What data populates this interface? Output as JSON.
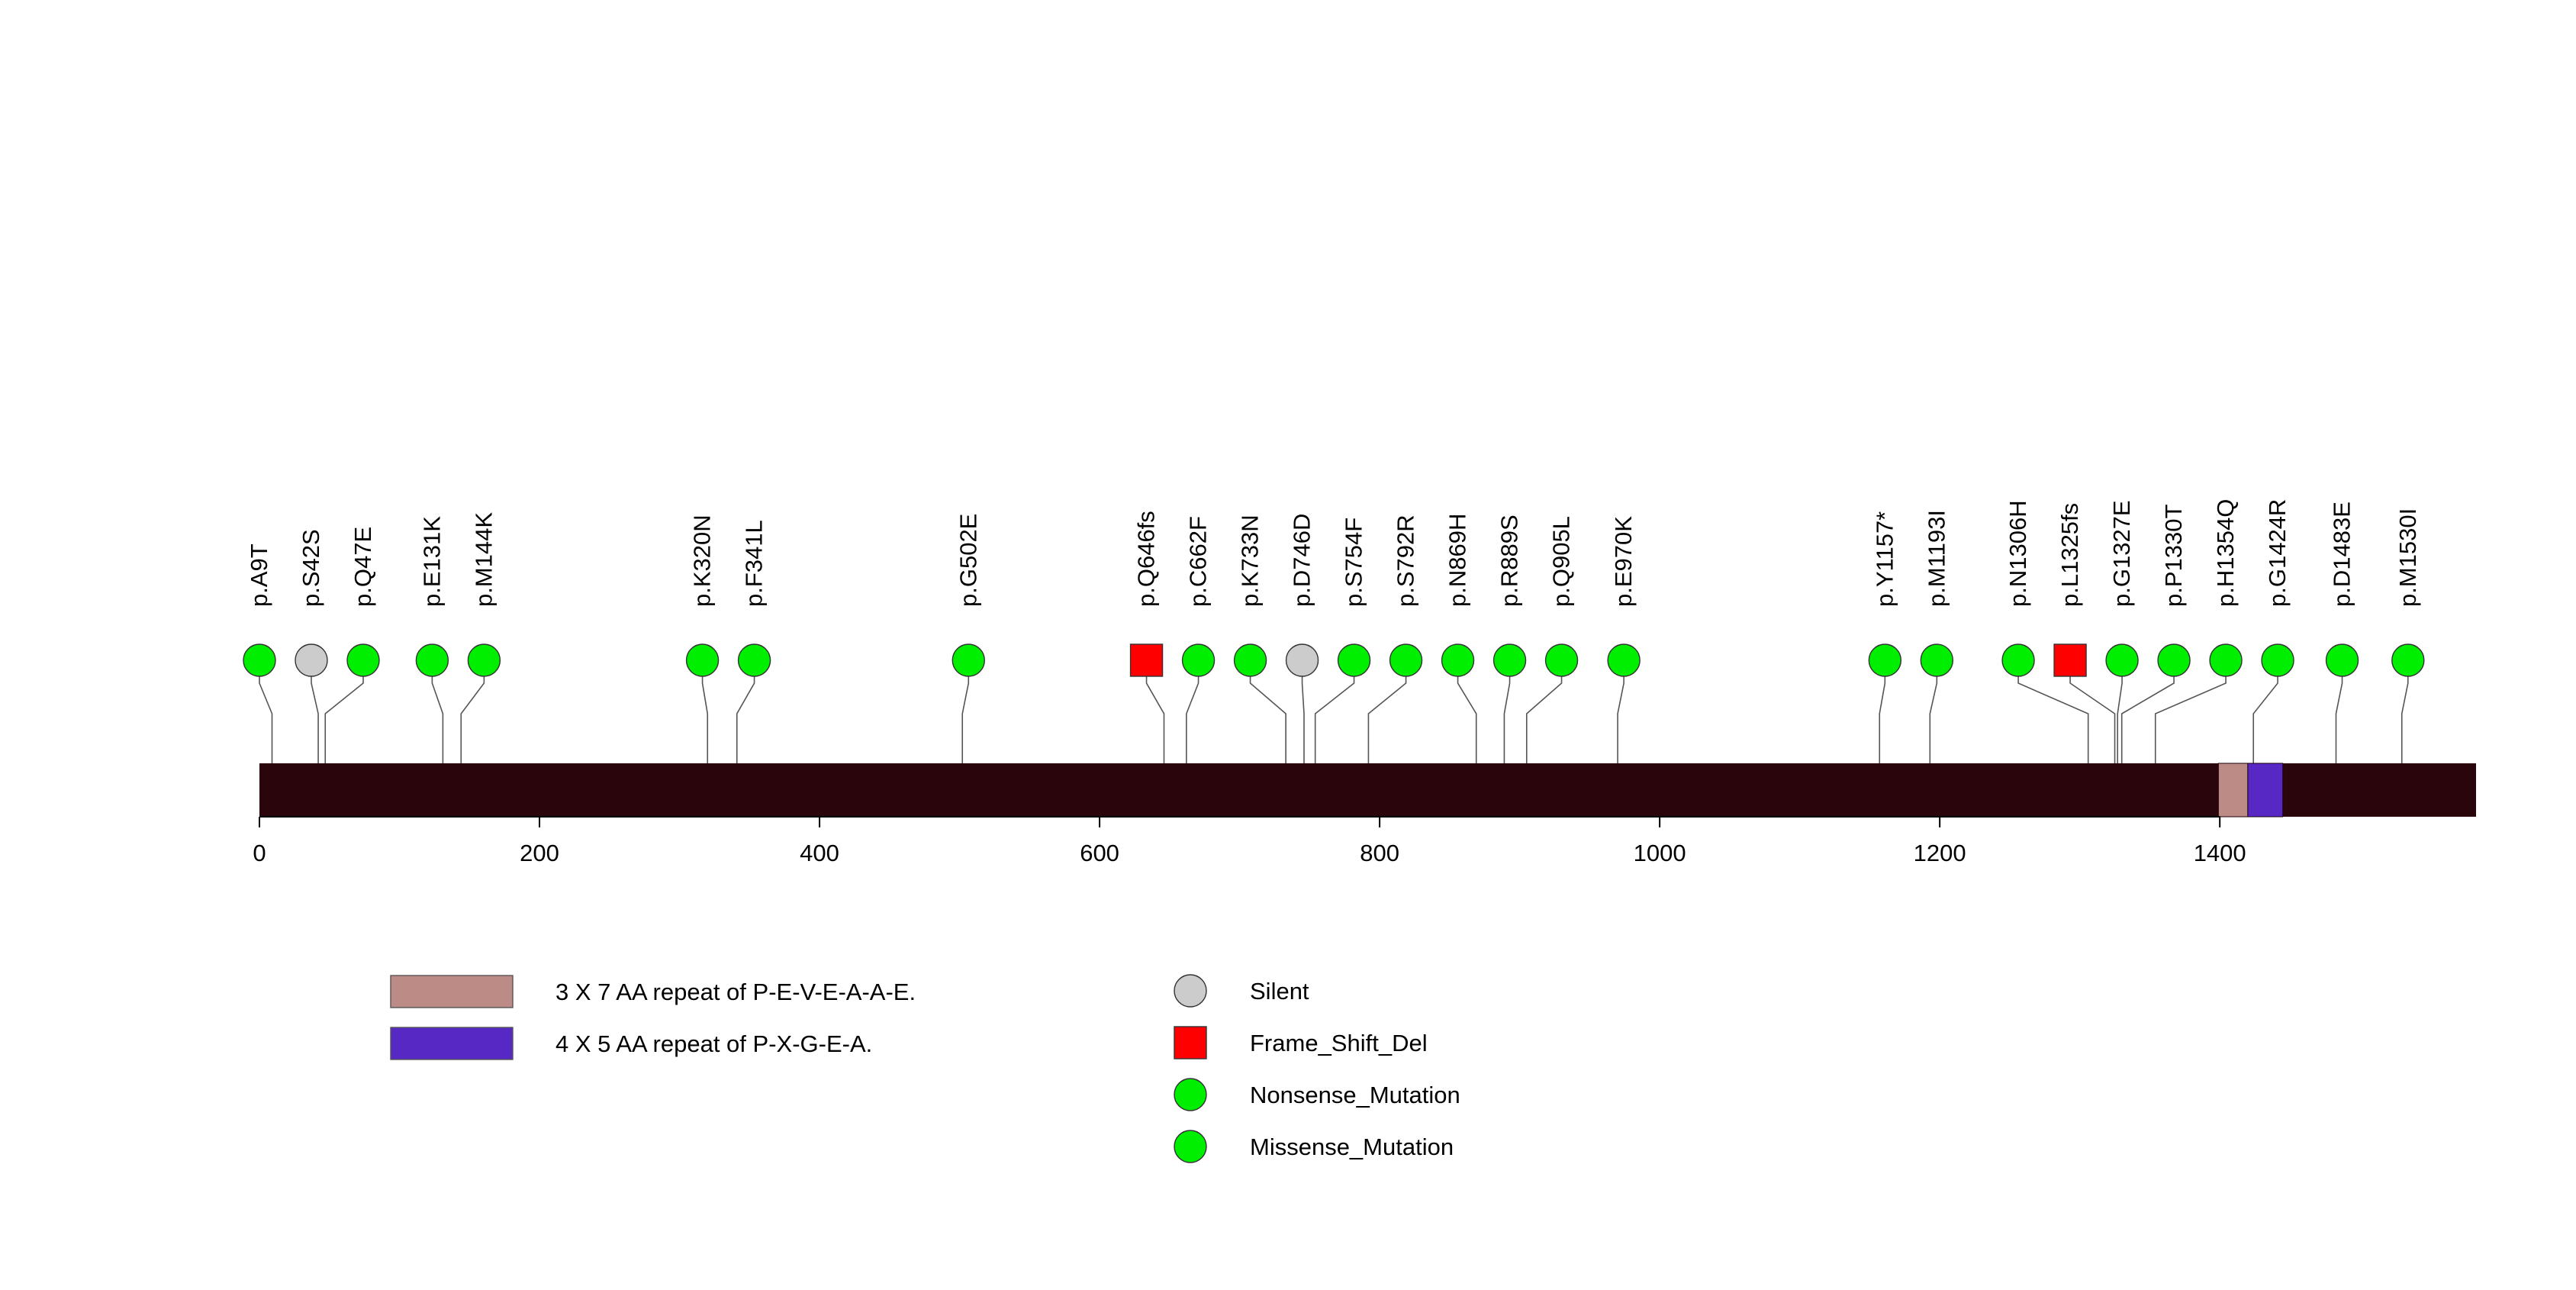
{
  "chart_data": {
    "type": "lollipop",
    "title": "",
    "xlabel": "",
    "ylabel": "",
    "protein_length": 1583,
    "xlim": [
      0,
      1583
    ],
    "ticks": [
      0,
      200,
      400,
      600,
      800,
      1000,
      1200,
      1400
    ],
    "tick_labels": [
      "0",
      "200",
      "400",
      "600",
      "800",
      "1000",
      "1200",
      "1400"
    ],
    "backbone_color": "#2a060c",
    "domains": [
      {
        "name": "3 X 7 AA repeat of P-E-V-E-A-A-E.",
        "start": 1399,
        "end": 1420,
        "color": "#bc8b85"
      },
      {
        "name": "4 X 5 AA repeat of P-X-G-E-A.",
        "start": 1420,
        "end": 1445,
        "color": "#5728c4"
      }
    ],
    "mutation_types": {
      "Silent": {
        "color": "#cccccc",
        "shape": "circle"
      },
      "Frame_Shift_Del": {
        "color": "#ff0000",
        "shape": "square"
      },
      "Nonsense_Mutation": {
        "color": "#00ee00",
        "shape": "circle"
      },
      "Missense_Mutation": {
        "color": "#00ee00",
        "shape": "circle"
      }
    },
    "mutations": [
      {
        "label": "p.A9T",
        "position": 9,
        "type": "Missense_Mutation"
      },
      {
        "label": "p.S42S",
        "position": 42,
        "type": "Silent"
      },
      {
        "label": "p.Q47E",
        "position": 47,
        "type": "Missense_Mutation"
      },
      {
        "label": "p.E131K",
        "position": 131,
        "type": "Missense_Mutation"
      },
      {
        "label": "p.M144K",
        "position": 144,
        "type": "Missense_Mutation"
      },
      {
        "label": "p.K320N",
        "position": 320,
        "type": "Missense_Mutation"
      },
      {
        "label": "p.F341L",
        "position": 341,
        "type": "Missense_Mutation"
      },
      {
        "label": "p.G502E",
        "position": 502,
        "type": "Missense_Mutation"
      },
      {
        "label": "p.Q646fs",
        "position": 646,
        "type": "Frame_Shift_Del"
      },
      {
        "label": "p.C662F",
        "position": 662,
        "type": "Missense_Mutation"
      },
      {
        "label": "p.K733N",
        "position": 733,
        "type": "Missense_Mutation"
      },
      {
        "label": "p.D746D",
        "position": 746,
        "type": "Silent"
      },
      {
        "label": "p.S754F",
        "position": 754,
        "type": "Missense_Mutation"
      },
      {
        "label": "p.S792R",
        "position": 792,
        "type": "Missense_Mutation"
      },
      {
        "label": "p.N869H",
        "position": 869,
        "type": "Missense_Mutation"
      },
      {
        "label": "p.R889S",
        "position": 889,
        "type": "Missense_Mutation"
      },
      {
        "label": "p.Q905L",
        "position": 905,
        "type": "Missense_Mutation"
      },
      {
        "label": "p.E970K",
        "position": 970,
        "type": "Missense_Mutation"
      },
      {
        "label": "p.Y1157*",
        "position": 1157,
        "type": "Nonsense_Mutation"
      },
      {
        "label": "p.M1193I",
        "position": 1193,
        "type": "Missense_Mutation"
      },
      {
        "label": "p.N1306H",
        "position": 1306,
        "type": "Missense_Mutation"
      },
      {
        "label": "p.L1325fs",
        "position": 1325,
        "type": "Frame_Shift_Del"
      },
      {
        "label": "p.G1327E",
        "position": 1327,
        "type": "Missense_Mutation"
      },
      {
        "label": "p.P1330T",
        "position": 1330,
        "type": "Missense_Mutation"
      },
      {
        "label": "p.H1354Q",
        "position": 1354,
        "type": "Missense_Mutation"
      },
      {
        "label": "p.G1424R",
        "position": 1424,
        "type": "Missense_Mutation"
      },
      {
        "label": "p.D1483E",
        "position": 1483,
        "type": "Missense_Mutation"
      },
      {
        "label": "p.M1530I",
        "position": 1530,
        "type": "Missense_Mutation"
      }
    ],
    "legend": {
      "domains": [
        "3 X 7 AA repeat of P-E-V-E-A-A-E.",
        "4 X 5 AA repeat of P-X-G-E-A."
      ],
      "mutation_types": [
        "Silent",
        "Frame_Shift_Del",
        "Nonsense_Mutation",
        "Missense_Mutation"
      ]
    }
  }
}
